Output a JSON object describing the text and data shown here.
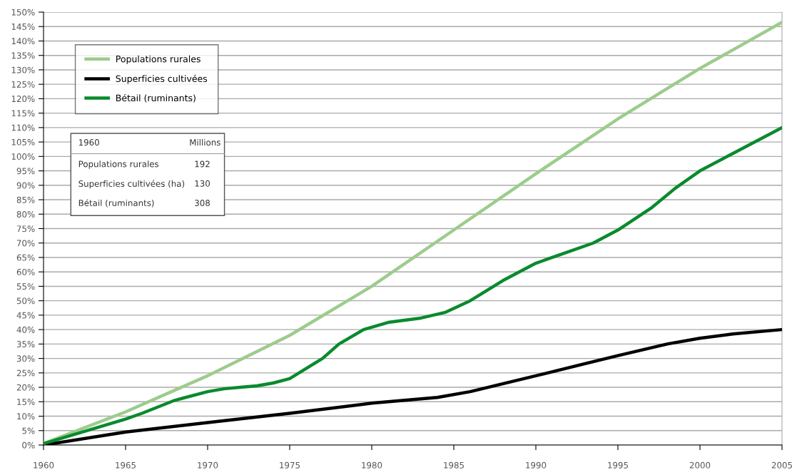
{
  "chart_data": {
    "type": "line",
    "xlim": [
      1960,
      2005
    ],
    "xticks": [
      1960,
      1965,
      1970,
      1975,
      1980,
      1985,
      1990,
      1995,
      2000,
      2005
    ],
    "ylim": [
      0,
      150
    ],
    "yticks": [
      {
        "value": 0,
        "label": "0%"
      },
      {
        "value": 5,
        "label": "5%"
      },
      {
        "value": 10,
        "label": "10%"
      },
      {
        "value": 15,
        "label": "15%"
      },
      {
        "value": 20,
        "label": "20%"
      },
      {
        "value": 25,
        "label": "25%"
      },
      {
        "value": 30,
        "label": "30%"
      },
      {
        "value": 35,
        "label": "35%"
      },
      {
        "value": 40,
        "label": "40%"
      },
      {
        "value": 45,
        "label": "45%"
      },
      {
        "value": 50,
        "label": "50%"
      },
      {
        "value": 55,
        "label": "55%"
      },
      {
        "value": 60,
        "label": "60%"
      },
      {
        "value": 65,
        "label": "65%"
      },
      {
        "value": 70,
        "label": "70%"
      },
      {
        "value": 75,
        "label": "75%"
      },
      {
        "value": 80,
        "label": "80%"
      },
      {
        "value": 85,
        "label": "85%"
      },
      {
        "value": 90,
        "label": "90%"
      },
      {
        "value": 95,
        "label": "95%"
      },
      {
        "value": 100,
        "label": "100%"
      },
      {
        "value": 105,
        "label": "105%"
      },
      {
        "value": 110,
        "label": "110%"
      },
      {
        "value": 115,
        "label": "115%"
      },
      {
        "value": 120,
        "label": "120%"
      },
      {
        "value": 125,
        "label": "125%"
      },
      {
        "value": 130,
        "label": "130%"
      },
      {
        "value": 135,
        "label": "135%"
      },
      {
        "value": 140,
        "label": "140%"
      },
      {
        "value": 145,
        "label": "145%"
      },
      {
        "value": 150,
        "label": "150%"
      }
    ],
    "grid": "y",
    "legend": "top left",
    "marker": "none",
    "line_style": "solid",
    "series": [
      {
        "name": "Populations rurales",
        "color": "#9ccc8c",
        "x": [
          1960,
          1965,
          1970,
          1975,
          1980,
          1985,
          1990,
          1995,
          2000,
          2005
        ],
        "values": [
          0.5,
          11.5,
          24,
          38,
          55,
          74.5,
          94,
          113,
          130.5,
          146.5
        ]
      },
      {
        "name": "Superficies cultivées",
        "color": "#000000",
        "x": [
          1960,
          1965,
          1970,
          1975,
          1980,
          1984,
          1986,
          1990,
          1995,
          1998,
          2000,
          2002,
          2005
        ],
        "values": [
          0,
          4.5,
          7.8,
          11,
          14.5,
          16.5,
          18.5,
          24,
          31,
          35,
          37,
          38.5,
          40
        ]
      },
      {
        "name": "Bétail (ruminants)",
        "color": "#0a8a2e",
        "x": [
          1960,
          1965,
          1966,
          1968,
          1970,
          1971,
          1972,
          1973,
          1974,
          1975,
          1977,
          1978,
          1979.5,
          1981,
          1983,
          1984.5,
          1986,
          1988,
          1990,
          1992,
          1993.5,
          1995,
          1997,
          1998.5,
          2000,
          2002,
          2005
        ],
        "values": [
          0.5,
          9,
          11,
          15.5,
          18.5,
          19.5,
          20,
          20.5,
          21.5,
          23,
          30,
          35,
          40,
          42.5,
          44,
          46,
          50,
          57,
          63,
          67,
          70,
          74.5,
          82,
          89,
          95,
          101,
          110
        ]
      }
    ],
    "annotations": [
      "1960",
      "Millions",
      "Populations rurales",
      "192",
      "Superficies cultivées (ha)",
      "130",
      "Bétail (ruminants)",
      "308"
    ]
  }
}
